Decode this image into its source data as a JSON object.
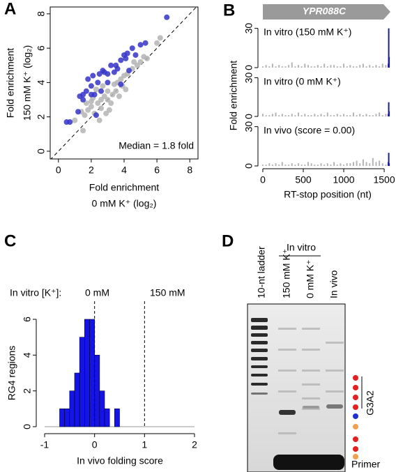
{
  "panels": [
    "A",
    "B",
    "C",
    "D"
  ],
  "panel_b": {
    "gene": "YPR088C",
    "x_label": "RT-stop position (nt)",
    "y_label": "Fold enrichment",
    "xlim": [
      -60,
      1620
    ],
    "xticks": [
      0,
      500,
      1000,
      1500
    ]
  },
  "gel": {
    "group": "In vitro",
    "lanes": [
      "10-nt ladder",
      "150 mM K⁺",
      "0 mM K⁺",
      "In vivo"
    ],
    "motif": "G3A2",
    "primer": "Primer"
  },
  "chart_data": [
    {
      "type": "scatter",
      "x_label": [
        "Fold enrichment",
        "0 mM K⁺ (log₂)"
      ],
      "y_label": [
        "Fold enrichment",
        "150 mM K⁺ (log₂)"
      ],
      "annotation": "Median = 1.8 fold",
      "xlim": [
        -0.5,
        8.5
      ],
      "ylim": [
        -0.45,
        8.4
      ],
      "xticks": [
        0,
        2,
        4,
        6,
        8
      ],
      "yticks": [
        0,
        2,
        4,
        6,
        8
      ],
      "series": [
        {
          "color": "#b4b4b4",
          "x": [
            1,
            1.4,
            1.6,
            1.8,
            2,
            2,
            2.2,
            2.4,
            2.6,
            2.6,
            2.8,
            3,
            3,
            3.2,
            3.3,
            3.5,
            3.6,
            3.8,
            3.9,
            4,
            4.2,
            4.5,
            4.6,
            4.8,
            5,
            5.2,
            5.4,
            6,
            6.2,
            1.5,
            2.5,
            2.9,
            3.1,
            3.7,
            4.1,
            2.3,
            2.1,
            1.7,
            2.7,
            3.4
          ],
          "values": [
            1.8,
            2.3,
            2.1,
            2.4,
            2.6,
            2.9,
            2.2,
            2.8,
            3,
            2.5,
            3.2,
            3,
            3.5,
            2.8,
            3.3,
            3.5,
            4,
            4.2,
            3.8,
            4.4,
            4.5,
            4.8,
            5.2,
            5,
            5.2,
            5.5,
            5.4,
            6.3,
            6.6,
            1.2,
            1.8,
            2.2,
            2.4,
            3.2,
            3.6,
            3.6,
            3.1,
            2.8,
            3.8,
            3.9
          ]
        },
        {
          "color": "#3434c8",
          "x": [
            0.5,
            0.7,
            1.2,
            1.5,
            1.5,
            1.7,
            2,
            2.2,
            2.4,
            2.5,
            2.8,
            3,
            3.2,
            3.5,
            3.6,
            3.8,
            4,
            4.2,
            4.5,
            4.7,
            5,
            5.3,
            2,
            2.6,
            3,
            1.8,
            2.7,
            3.4,
            1.3,
            4.1,
            6.6,
            2.3,
            3.8,
            4.3,
            2.1
          ],
          "values": [
            1.7,
            1.7,
            2.3,
            3,
            3.3,
            3.5,
            3.8,
            3.3,
            4,
            4.5,
            4.6,
            4.5,
            5,
            5,
            4.8,
            5.3,
            5.6,
            5.7,
            6,
            5.6,
            6.2,
            6.3,
            3.3,
            3.5,
            4,
            4.2,
            4.7,
            4.6,
            3.2,
            5.4,
            7.8,
            2.1,
            3.9,
            4.7,
            4.4
          ]
        }
      ]
    },
    {
      "type": "bar",
      "title": "In vitro (150 mM K⁺)",
      "ylim": [
        0,
        33
      ],
      "yticks": [
        0,
        30
      ],
      "series": [
        {
          "color": "#b4b4b4",
          "x": [
            0,
            40,
            80,
            120,
            160,
            200,
            240,
            280,
            320,
            360,
            400,
            440,
            480,
            520,
            560,
            600,
            640,
            680,
            720,
            760,
            800,
            840,
            880,
            920,
            960,
            1000,
            1040,
            1080,
            1120,
            1160,
            1200,
            1240,
            1280,
            1320,
            1360,
            1400,
            1440,
            1480,
            1520
          ],
          "values": [
            1,
            2,
            1,
            3,
            1,
            2,
            1,
            1,
            2,
            4,
            1,
            2,
            1,
            3,
            2,
            1,
            1,
            2,
            1,
            3,
            1,
            2,
            2,
            1,
            1,
            3,
            1,
            2,
            1,
            1,
            2,
            3,
            1,
            2,
            1,
            2,
            1,
            3,
            2
          ]
        },
        {
          "color": "#1a1aa8",
          "x": [
            1552,
            1556,
            1560
          ],
          "values": [
            3,
            30,
            8
          ]
        }
      ]
    },
    {
      "type": "bar",
      "title": "In vitro (0 mM K⁺)",
      "ylim": [
        0,
        33
      ],
      "yticks": [
        0,
        30
      ],
      "series": [
        {
          "color": "#b4b4b4",
          "x": [
            0,
            40,
            80,
            120,
            160,
            200,
            240,
            280,
            320,
            360,
            400,
            440,
            480,
            520,
            560,
            600,
            640,
            680,
            720,
            760,
            800,
            840,
            880,
            920,
            960,
            1000,
            1040,
            1080,
            1120,
            1160,
            1200,
            1240,
            1280,
            1320,
            1360,
            1400,
            1440,
            1480,
            1520
          ],
          "values": [
            2,
            1,
            1,
            2,
            3,
            1,
            2,
            1,
            1,
            2,
            1,
            3,
            1,
            2,
            1,
            1,
            2,
            1,
            2,
            1,
            3,
            1,
            1,
            2,
            1,
            2,
            1,
            1,
            3,
            1,
            2,
            1,
            2,
            1,
            1,
            2,
            3,
            1,
            2
          ]
        },
        {
          "color": "#1a1aa8",
          "x": [
            1552,
            1556,
            1560
          ],
          "values": [
            2,
            11,
            4
          ]
        }
      ]
    },
    {
      "type": "bar",
      "title": "In vivo (score = 0.00)",
      "ylim": [
        0,
        33
      ],
      "yticks": [
        0,
        30
      ],
      "series": [
        {
          "color": "#b4b4b4",
          "x": [
            0,
            40,
            80,
            120,
            160,
            200,
            240,
            280,
            320,
            360,
            400,
            440,
            480,
            520,
            560,
            600,
            640,
            680,
            720,
            760,
            800,
            840,
            880,
            920,
            960,
            1000,
            1040,
            1080,
            1120,
            1160,
            1200,
            1240,
            1280,
            1320,
            1360,
            1400,
            1440,
            1480,
            1520
          ],
          "values": [
            1,
            1,
            2,
            1,
            2,
            1,
            3,
            1,
            1,
            2,
            1,
            2,
            1,
            1,
            3,
            2,
            1,
            1,
            2,
            1,
            2,
            1,
            3,
            1,
            2,
            1,
            2,
            2,
            3,
            4,
            2,
            5,
            3,
            2,
            6,
            3,
            4,
            2,
            1
          ]
        },
        {
          "color": "#1a1aa8",
          "x": [
            1552,
            1556,
            1560
          ],
          "values": [
            3,
            10,
            2
          ]
        }
      ]
    },
    {
      "type": "histogram",
      "x_label": "In vivo folding score",
      "y_label": "RG4 regions",
      "color": "#1414e6",
      "annotations": [
        "In vitro [K⁺]:",
        "0 mM",
        "150 mM"
      ],
      "vlines": [
        0,
        1
      ],
      "bins": [
        -0.7,
        -0.6,
        -0.5,
        -0.4,
        -0.3,
        -0.2,
        -0.1,
        0,
        0.1,
        0.2,
        0.3,
        0.4,
        0.5
      ],
      "values": [
        1,
        1,
        2,
        3,
        5,
        6,
        6,
        4,
        2,
        1,
        0,
        1
      ],
      "xlim": [
        -1,
        2
      ],
      "ylim": [
        0,
        6
      ],
      "xticks": [
        -1,
        0,
        1,
        2
      ],
      "yticks": [
        0,
        2,
        4,
        6
      ]
    }
  ]
}
